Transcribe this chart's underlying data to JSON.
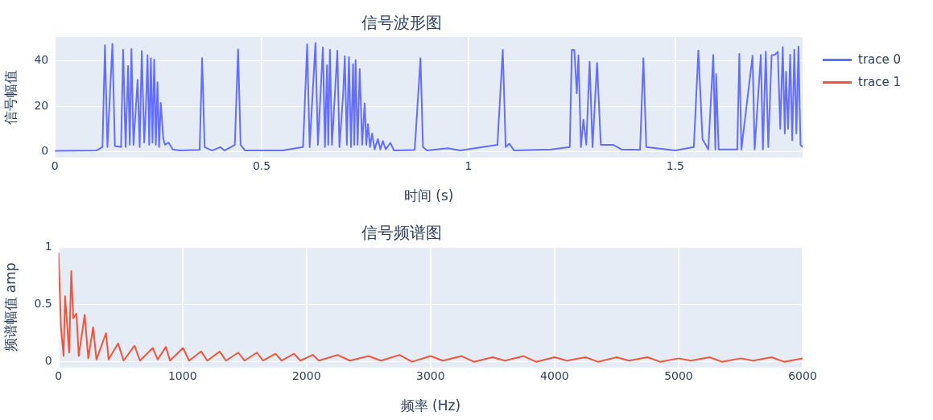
{
  "chart_data": [
    {
      "type": "line",
      "title": "信号波形图",
      "xlabel": "时间 (s)",
      "ylabel": "信号幅值",
      "x": [
        0,
        0.1,
        0.115,
        0.121,
        0.127,
        0.139,
        0.145,
        0.16,
        0.165,
        0.171,
        0.177,
        0.181,
        0.185,
        0.19,
        0.2,
        0.205,
        0.21,
        0.216,
        0.22,
        0.224,
        0.228,
        0.232,
        0.236,
        0.24,
        0.244,
        0.248,
        0.252,
        0.256,
        0.262,
        0.266,
        0.275,
        0.285,
        0.3,
        0.35,
        0.356,
        0.362,
        0.38,
        0.4,
        0.41,
        0.435,
        0.443,
        0.449,
        0.46,
        0.55,
        0.6,
        0.61,
        0.616,
        0.63,
        0.636,
        0.648,
        0.653,
        0.658,
        0.661,
        0.665,
        0.67,
        0.679,
        0.683,
        0.688,
        0.697,
        0.701,
        0.706,
        0.711,
        0.716,
        0.721,
        0.724,
        0.727,
        0.732,
        0.737,
        0.743,
        0.749,
        0.753,
        0.757,
        0.762,
        0.767,
        0.773,
        0.781,
        0.787,
        0.793,
        0.8,
        0.811,
        0.82,
        0.87,
        0.884,
        0.89,
        0.9,
        0.95,
        0.98,
        1.07,
        1.083,
        1.09,
        1.099,
        1.11,
        1.2,
        1.245,
        1.25,
        1.256,
        1.262,
        1.266,
        1.272,
        1.278,
        1.285,
        1.293,
        1.3,
        1.311,
        1.32,
        1.35,
        1.37,
        1.415,
        1.423,
        1.43,
        1.5,
        1.545,
        1.556,
        1.566,
        1.58,
        1.592,
        1.597,
        1.599,
        1.605,
        1.65,
        1.655,
        1.66,
        1.687,
        1.692,
        1.707,
        1.712,
        1.719,
        1.725,
        1.733,
        1.741,
        1.748,
        1.754,
        1.76,
        1.765,
        1.768,
        1.773,
        1.778,
        1.783,
        1.788,
        1.793,
        1.798,
        1.803,
        1.808
      ],
      "series": [
        {
          "name": "trace 0",
          "color": "#636efa",
          "values": [
            0.3,
            0.5,
            2,
            46.9,
            2,
            47.5,
            2.5,
            2,
            44.9,
            2,
            37.7,
            3,
            45.3,
            3,
            31.6,
            2,
            44.3,
            4,
            19.2,
            42.5,
            3,
            41.2,
            4,
            40.6,
            3,
            30.6,
            2,
            21.5,
            6,
            3,
            4,
            1,
            0.5,
            0.8,
            41.2,
            2,
            0.5,
            2,
            0.5,
            3,
            45.1,
            3,
            0.5,
            0.5,
            2,
            47.2,
            2,
            47.8,
            3,
            45.9,
            2,
            38.1,
            3,
            44.9,
            3,
            31.6,
            44.5,
            2,
            25.5,
            42,
            3,
            41.6,
            2,
            38.5,
            3,
            40.3,
            3,
            36.4,
            3,
            21.3,
            3,
            12.1,
            2,
            8,
            1,
            5.6,
            1,
            4.7,
            1,
            3.9,
            0.5,
            0.8,
            41.2,
            2,
            0.5,
            1.5,
            0.5,
            3,
            44.8,
            2,
            3.5,
            0.5,
            1,
            2,
            44.8,
            44.8,
            25.7,
            42.4,
            2,
            14.1,
            3,
            39.6,
            2,
            39.1,
            3,
            3,
            1,
            0.8,
            41.2,
            2,
            0.5,
            2,
            44.6,
            5.5,
            1,
            42.6,
            1,
            34.2,
            1,
            1,
            43.1,
            1,
            42.3,
            1,
            42.6,
            1,
            44,
            2,
            42.4,
            42.7,
            44,
            10,
            46.1,
            8,
            35.2,
            10,
            42.7,
            5,
            44.9,
            8,
            46.3,
            3,
            2
          ]
        }
      ],
      "xlim": [
        0,
        1.808
      ],
      "ylim": [
        -2.6,
        50.5
      ],
      "xticks": [
        0,
        0.5,
        1,
        1.5
      ],
      "yticks": [
        0,
        20,
        40
      ],
      "grid": true,
      "legend": "right",
      "marker": "none",
      "line_style": "solid"
    },
    {
      "type": "line",
      "title": "信号频谱图",
      "xlabel": "频率 (Hz)",
      "ylabel": "频谱幅值 amp",
      "x": [
        0,
        20,
        41,
        53,
        86,
        103,
        119,
        145,
        163,
        211,
        240,
        279,
        306,
        383,
        404,
        481,
        525,
        613,
        657,
        760,
        800,
        866,
        899,
        1004,
        1053,
        1150,
        1200,
        1300,
        1350,
        1450,
        1500,
        1600,
        1650,
        1750,
        1800,
        1900,
        1950,
        2050,
        2100,
        2250,
        2350,
        2500,
        2600,
        2750,
        2850,
        3000,
        3100,
        3250,
        3350,
        3500,
        3600,
        3750,
        3850,
        4000,
        4100,
        4250,
        4350,
        4500,
        4600,
        4750,
        4850,
        5000,
        5100,
        5250,
        5350,
        5500,
        5600,
        5750,
        5850,
        6000
      ],
      "series": [
        {
          "name": "trace 1",
          "color": "#ef553b",
          "values": [
            0.95,
            0.3,
            0.05,
            0.57,
            0.08,
            0.79,
            0.38,
            0.42,
            0.05,
            0.41,
            0.03,
            0.3,
            0.02,
            0.25,
            0.02,
            0.16,
            0.01,
            0.14,
            0.01,
            0.12,
            0.02,
            0.13,
            0.01,
            0.12,
            0.01,
            0.09,
            0.01,
            0.09,
            0.01,
            0.08,
            0.01,
            0.08,
            0.01,
            0.07,
            0.01,
            0.07,
            0.01,
            0.06,
            0.01,
            0.06,
            0.01,
            0.05,
            0.01,
            0.06,
            0.0,
            0.05,
            0.01,
            0.05,
            0.0,
            0.04,
            0.01,
            0.05,
            0.0,
            0.04,
            0.01,
            0.04,
            0.0,
            0.04,
            0.01,
            0.04,
            0.0,
            0.03,
            0.01,
            0.04,
            0.0,
            0.03,
            0.01,
            0.04,
            0.0,
            0.03
          ]
        }
      ],
      "xlim": [
        0,
        6000
      ],
      "ylim": [
        -0.05,
        1
      ],
      "xticks": [
        0,
        1000,
        2000,
        3000,
        4000,
        5000,
        6000
      ],
      "yticks": [
        0,
        0.5,
        1
      ],
      "grid": true,
      "legend": "right",
      "marker": "none",
      "line_style": "solid"
    }
  ]
}
